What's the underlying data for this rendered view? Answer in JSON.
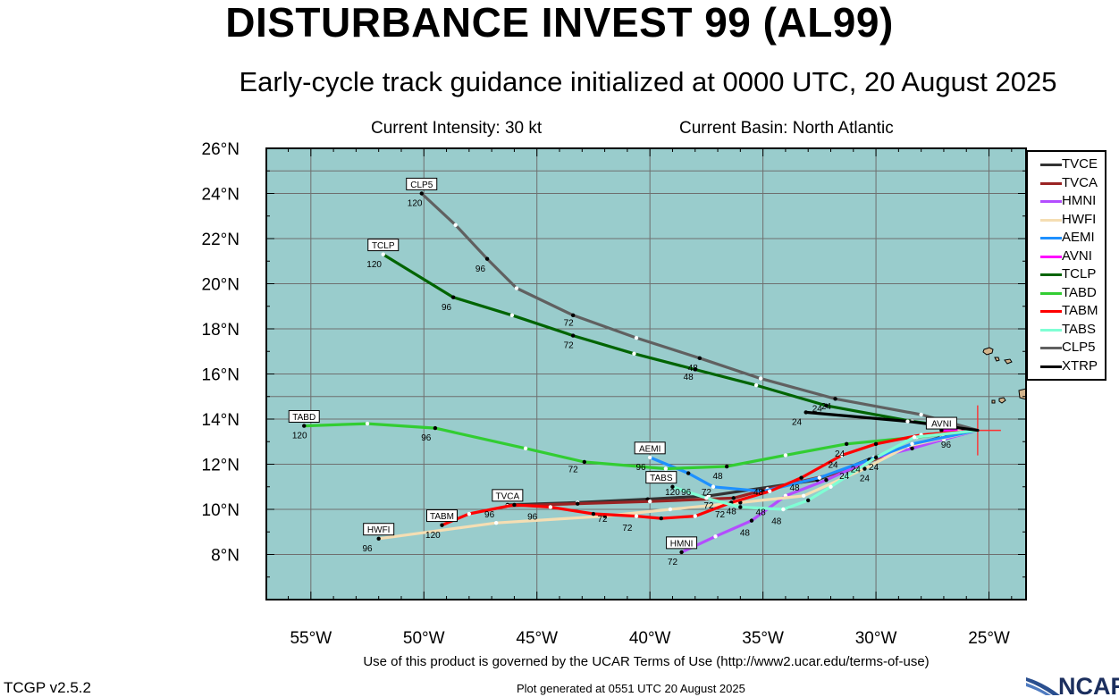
{
  "header": {
    "title": "DISTURBANCE INVEST 99 (AL99)",
    "subtitle": "Early-cycle track guidance initialized at 0000 UTC, 20 August 2025",
    "intensity": "Current Intensity: 30 kt",
    "basin": "Current Basin: North Atlantic"
  },
  "footer": {
    "terms": "Use of this product is governed by the UCAR Terms of Use (http://www2.ucar.edu/terms-of-use)",
    "version": "TCGP v2.5.2",
    "generated": "Plot generated at 0551 UTC   20 August 2025",
    "logo_text": "NCAR"
  },
  "chart_data": {
    "type": "line",
    "x_ticks": [
      "55°W",
      "50°W",
      "45°W",
      "40°W",
      "35°W",
      "30°W",
      "25°W"
    ],
    "y_ticks": [
      "8°N",
      "10°N",
      "12°N",
      "14°N",
      "16°N",
      "18°N",
      "20°N",
      "22°N",
      "24°N",
      "26°N"
    ],
    "xlim": [
      -56.97,
      -23.36
    ],
    "ylim": [
      6,
      26
    ],
    "grid": true,
    "legend_position": "right",
    "colors": {
      "ocean": "#99cccc",
      "grid": "#6f6f6f"
    },
    "start": [
      -25.5,
      13.5
    ],
    "series": [
      {
        "name": "TVCE",
        "color": "#333333",
        "points": [
          [
            -25.5,
            13.5
          ],
          [
            -27.1,
            13.2
          ],
          [
            -28.6,
            12.8
          ],
          [
            -30.1,
            12.3
          ],
          [
            -32.6,
            11.3
          ],
          [
            -37.4,
            10.6
          ],
          [
            -40.1,
            10.45
          ],
          [
            -43.2,
            10.3
          ],
          [
            -46.3,
            10.2
          ]
        ],
        "labels": []
      },
      {
        "name": "TVCA",
        "color": "#9a2323",
        "points": [
          [
            -25.5,
            13.5
          ],
          [
            -27.0,
            13.2
          ],
          [
            -28.4,
            12.8
          ],
          [
            -29.6,
            12.4
          ],
          [
            -31.3,
            11.7
          ],
          [
            -34.8,
            10.9
          ],
          [
            -36.3,
            10.5
          ],
          [
            -40.0,
            10.35
          ],
          [
            -43.2,
            10.25
          ],
          [
            -46.3,
            10.15
          ]
        ],
        "labels": []
      },
      {
        "name": "HMNI",
        "color": "#b34dff",
        "points": [
          [
            -25.5,
            13.5
          ],
          [
            -27.0,
            13.1
          ],
          [
            -28.4,
            12.7
          ],
          [
            -30.0,
            12.3
          ],
          [
            -32.2,
            11.3
          ],
          [
            -34.0,
            10.6
          ],
          [
            -35.5,
            9.5
          ],
          [
            -37.1,
            8.8
          ],
          [
            -38.6,
            8.1
          ]
        ],
        "labels": []
      },
      {
        "name": "HWFI",
        "color": "#f5deb3",
        "points": [
          [
            -25.5,
            13.5
          ],
          [
            -28.6,
            12.8
          ],
          [
            -30.5,
            11.8
          ],
          [
            -33.2,
            10.6
          ],
          [
            -36.0,
            10.3
          ],
          [
            -39.1,
            10.0
          ],
          [
            -42.0,
            9.7
          ],
          [
            -46.8,
            9.4
          ],
          [
            -52.0,
            8.7
          ]
        ],
        "labels": []
      },
      {
        "name": "AEMI",
        "color": "#1e90ff",
        "points": [
          [
            -25.5,
            13.5
          ],
          [
            -28.4,
            12.9
          ],
          [
            -30.3,
            12.2
          ],
          [
            -32.5,
            11.4
          ],
          [
            -35.0,
            10.8
          ],
          [
            -37.2,
            11.0
          ],
          [
            -38.3,
            11.6
          ],
          [
            -40.0,
            12.3
          ]
        ],
        "labels": []
      },
      {
        "name": "AVNI",
        "color": "#ff00ff",
        "points": [
          [
            -25.5,
            13.5
          ],
          [
            -26.3,
            13.5
          ],
          [
            -27.1,
            13.5
          ]
        ],
        "labels": []
      },
      {
        "name": "TCLP",
        "color": "#006400",
        "points": [
          [
            -25.5,
            13.5
          ],
          [
            -28.4,
            13.9
          ],
          [
            -32.2,
            14.6
          ],
          [
            -35.3,
            15.5
          ],
          [
            -38.0,
            16.2
          ],
          [
            -40.7,
            16.9
          ],
          [
            -43.4,
            17.7
          ],
          [
            -46.1,
            18.6
          ],
          [
            -48.7,
            19.4
          ],
          [
            -51.8,
            21.3
          ]
        ],
        "labels": []
      },
      {
        "name": "TABD",
        "color": "#32cd32",
        "points": [
          [
            -25.5,
            13.5
          ],
          [
            -28.2,
            13.2
          ],
          [
            -31.3,
            12.9
          ],
          [
            -34.0,
            12.4
          ],
          [
            -36.6,
            11.9
          ],
          [
            -39.3,
            11.8
          ],
          [
            -42.9,
            12.1
          ],
          [
            -45.5,
            12.7
          ],
          [
            -49.5,
            13.6
          ],
          [
            -52.5,
            13.8
          ],
          [
            -55.3,
            13.7
          ]
        ],
        "labels": []
      },
      {
        "name": "TABM",
        "color": "#ff0000",
        "points": [
          [
            -25.5,
            13.5
          ],
          [
            -28.0,
            13.3
          ],
          [
            -30.0,
            12.9
          ],
          [
            -31.5,
            12.4
          ],
          [
            -33.3,
            11.4
          ],
          [
            -34.7,
            10.8
          ],
          [
            -36.4,
            10.3
          ],
          [
            -38.0,
            9.7
          ],
          [
            -39.5,
            9.6
          ],
          [
            -40.6,
            9.7
          ],
          [
            -42.5,
            9.8
          ],
          [
            -44.4,
            10.1
          ],
          [
            -46.0,
            10.2
          ],
          [
            -48.0,
            9.8
          ],
          [
            -49.2,
            9.3
          ]
        ],
        "labels": []
      },
      {
        "name": "TABS",
        "color": "#7fffd4",
        "points": [
          [
            -25.5,
            13.5
          ],
          [
            -28.3,
            13.2
          ],
          [
            -30.0,
            12.3
          ],
          [
            -32.0,
            11.0
          ],
          [
            -33.0,
            10.4
          ],
          [
            -34.1,
            10.0
          ],
          [
            -36.0,
            10.1
          ],
          [
            -37.5,
            10.5
          ],
          [
            -39.0,
            11.0
          ]
        ],
        "labels": []
      },
      {
        "name": "CLP5",
        "color": "#606060",
        "points": [
          [
            -25.5,
            13.5
          ],
          [
            -28.0,
            14.2
          ],
          [
            -31.8,
            14.9
          ],
          [
            -35.1,
            15.8
          ],
          [
            -37.8,
            16.7
          ],
          [
            -40.6,
            17.6
          ],
          [
            -43.4,
            18.6
          ],
          [
            -45.9,
            19.8
          ],
          [
            -47.2,
            21.1
          ],
          [
            -48.6,
            22.6
          ],
          [
            -50.1,
            24.0
          ]
        ],
        "labels": []
      },
      {
        "name": "XTRP",
        "color": "#000000",
        "points": [
          [
            -25.5,
            13.5
          ],
          [
            -28.6,
            13.9
          ],
          [
            -33.1,
            14.3
          ]
        ],
        "labels": []
      }
    ],
    "tau_labels": [
      {
        "text": "120",
        "x": -50.4,
        "y": 23.6
      },
      {
        "text": "96",
        "x": -47.5,
        "y": 20.7
      },
      {
        "text": "72",
        "x": -43.6,
        "y": 18.3
      },
      {
        "text": "48",
        "x": -38.1,
        "y": 16.3
      },
      {
        "text": "120",
        "x": -52.2,
        "y": 20.9
      },
      {
        "text": "96",
        "x": -49.0,
        "y": 19.0
      },
      {
        "text": "72",
        "x": -43.6,
        "y": 17.3
      },
      {
        "text": "48",
        "x": -38.3,
        "y": 15.9
      },
      {
        "text": "24",
        "x": -33.5,
        "y": 13.9
      },
      {
        "text": "24",
        "x": -32.6,
        "y": 14.5
      },
      {
        "text": "24",
        "x": -32.2,
        "y": 14.6
      },
      {
        "text": "120",
        "x": -55.5,
        "y": 13.3
      },
      {
        "text": "96",
        "x": -49.9,
        "y": 13.2
      },
      {
        "text": "72",
        "x": -43.4,
        "y": 11.8
      },
      {
        "text": "24",
        "x": -31.6,
        "y": 12.5
      },
      {
        "text": "24",
        "x": -31.9,
        "y": 12.0
      },
      {
        "text": "96",
        "x": -40.4,
        "y": 11.9
      },
      {
        "text": "96",
        "x": -38.4,
        "y": 10.8
      },
      {
        "text": "120",
        "x": -39.0,
        "y": 10.8
      },
      {
        "text": "72",
        "x": -37.5,
        "y": 10.8
      },
      {
        "text": "48",
        "x": -37.0,
        "y": 11.5
      },
      {
        "text": "72",
        "x": -37.4,
        "y": 10.2
      },
      {
        "text": "48",
        "x": -35.2,
        "y": 10.8
      },
      {
        "text": "48",
        "x": -33.6,
        "y": 11.0
      },
      {
        "text": "24",
        "x": -30.9,
        "y": 11.8
      },
      {
        "text": "24",
        "x": -30.1,
        "y": 11.9
      },
      {
        "text": "24",
        "x": -31.4,
        "y": 11.5
      },
      {
        "text": "24",
        "x": -30.5,
        "y": 11.4
      },
      {
        "text": "96",
        "x": -47.1,
        "y": 9.8
      },
      {
        "text": "96",
        "x": -45.2,
        "y": 9.7
      },
      {
        "text": "72",
        "x": -42.1,
        "y": 9.6
      },
      {
        "text": "72",
        "x": -41.0,
        "y": 9.2
      },
      {
        "text": "72",
        "x": -36.9,
        "y": 9.8
      },
      {
        "text": "48",
        "x": -36.4,
        "y": 9.95
      },
      {
        "text": "48",
        "x": -35.1,
        "y": 9.9
      },
      {
        "text": "48",
        "x": -34.4,
        "y": 9.5
      },
      {
        "text": "48",
        "x": -35.8,
        "y": 9.0
      },
      {
        "text": "120",
        "x": -49.6,
        "y": 8.9
      },
      {
        "text": "96",
        "x": -52.5,
        "y": 8.3
      },
      {
        "text": "72",
        "x": -39.0,
        "y": 7.7
      },
      {
        "text": "96",
        "x": -26.9,
        "y": 12.9
      }
    ],
    "model_boxes": [
      {
        "text": "CLP5",
        "x": -50.1,
        "y": 24.4
      },
      {
        "text": "TCLP",
        "x": -51.8,
        "y": 21.7
      },
      {
        "text": "TABD",
        "x": -55.3,
        "y": 14.1
      },
      {
        "text": "AEMI",
        "x": -40.0,
        "y": 12.7
      },
      {
        "text": "TABS",
        "x": -39.5,
        "y": 11.4
      },
      {
        "text": "TVCA",
        "x": -46.3,
        "y": 10.6
      },
      {
        "text": "TABM",
        "x": -49.2,
        "y": 9.7
      },
      {
        "text": "HWFI",
        "x": -52.0,
        "y": 9.1
      },
      {
        "text": "HMNI",
        "x": -38.6,
        "y": 8.5
      },
      {
        "text": "AVNI",
        "x": -27.1,
        "y": 13.8
      }
    ]
  }
}
